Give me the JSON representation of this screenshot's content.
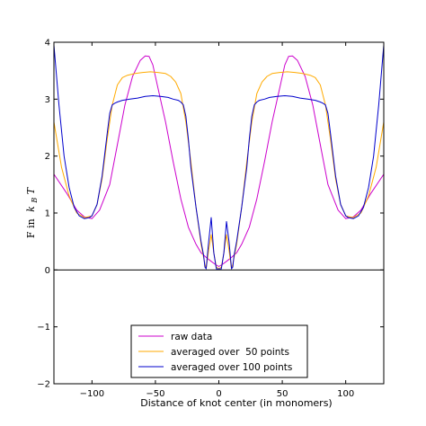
{
  "chart_data": {
    "type": "line",
    "title": "",
    "xlabel": "Distance of knot center (in monomers)",
    "ylabel_text": "F in",
    "ylabel_math": "k",
    "ylabel_sub": "B",
    "ylabel_tail": "T",
    "xlim": [
      -130,
      130
    ],
    "ylim": [
      -2,
      4
    ],
    "xticks": [
      -100,
      -50,
      0,
      50,
      100
    ],
    "xtick_labels": [
      "−100",
      "−50",
      "0",
      "50",
      "100"
    ],
    "yticks": [
      -2,
      -1,
      0,
      1,
      2,
      3,
      4
    ],
    "ytick_labels": [
      "−2",
      "−1",
      "0",
      "1",
      "2",
      "3",
      "4"
    ],
    "grid": false,
    "legend_position": "lower-center",
    "reference_line_y": 0,
    "series": [
      {
        "name": "raw data",
        "color": "#cc00cc",
        "x": [
          -130,
          -120,
          -112,
          -106,
          -100,
          -94,
          -86,
          -80,
          -74,
          -68,
          -62,
          -58,
          -55,
          -52,
          -48,
          -42,
          -36,
          -30,
          -24,
          -18,
          -14,
          -10,
          -6,
          -3,
          0,
          3,
          6,
          10,
          14,
          18,
          24,
          30,
          36,
          42,
          48,
          52,
          55,
          58,
          62,
          68,
          74,
          80,
          86,
          94,
          100,
          106,
          112,
          120,
          130
        ],
        "y": [
          1.68,
          1.35,
          1.05,
          0.93,
          0.9,
          1.05,
          1.5,
          2.2,
          2.9,
          3.4,
          3.68,
          3.76,
          3.75,
          3.6,
          3.2,
          2.6,
          1.9,
          1.25,
          0.75,
          0.45,
          0.3,
          0.22,
          0.15,
          0.1,
          0.06,
          0.1,
          0.15,
          0.22,
          0.3,
          0.45,
          0.75,
          1.25,
          1.9,
          2.6,
          3.2,
          3.6,
          3.75,
          3.76,
          3.68,
          3.4,
          2.9,
          2.2,
          1.5,
          1.05,
          0.9,
          0.93,
          1.05,
          1.35,
          1.68
        ]
      },
      {
        "name": "averaged over  50 points",
        "color": "#ffaa00",
        "x": [
          -130,
          -124,
          -118,
          -112,
          -106,
          -100,
          -96,
          -92,
          -88,
          -84,
          -80,
          -76,
          -72,
          -66,
          -60,
          -54,
          -48,
          -42,
          -38,
          -34,
          -30,
          -26,
          -22,
          -18,
          -14,
          -11,
          -10,
          -8,
          -6,
          -4,
          -2,
          0,
          2,
          4,
          6,
          8,
          10,
          11,
          14,
          18,
          22,
          26,
          30,
          34,
          38,
          42,
          48,
          54,
          60,
          66,
          72,
          76,
          80,
          84,
          88,
          92,
          96,
          100,
          106,
          112,
          118,
          124,
          130
        ],
        "y": [
          2.6,
          1.8,
          1.3,
          1.0,
          0.92,
          0.95,
          1.15,
          1.6,
          2.3,
          2.9,
          3.25,
          3.38,
          3.42,
          3.45,
          3.47,
          3.48,
          3.47,
          3.45,
          3.4,
          3.3,
          3.1,
          2.6,
          1.9,
          1.1,
          0.45,
          0.1,
          0.02,
          0.35,
          0.62,
          0.3,
          0.05,
          0.02,
          0.05,
          0.3,
          0.62,
          0.35,
          0.02,
          0.1,
          0.45,
          1.1,
          1.9,
          2.6,
          3.1,
          3.3,
          3.4,
          3.45,
          3.47,
          3.48,
          3.47,
          3.45,
          3.42,
          3.38,
          3.25,
          2.9,
          2.3,
          1.6,
          1.15,
          0.95,
          0.92,
          1.0,
          1.3,
          1.8,
          2.6
        ]
      },
      {
        "name": "averaged over 100 points",
        "color": "#0000cc",
        "x": [
          -130,
          -126,
          -122,
          -118,
          -114,
          -110,
          -106,
          -102,
          -100,
          -96,
          -92,
          -88,
          -86,
          -84,
          -82,
          -80,
          -76,
          -70,
          -64,
          -58,
          -52,
          -46,
          -40,
          -36,
          -32,
          -30,
          -28,
          -26,
          -24,
          -22,
          -18,
          -14,
          -12,
          -11,
          -10,
          -8,
          -6,
          -4,
          -2,
          0,
          2,
          4,
          6,
          8,
          10,
          11,
          12,
          14,
          18,
          22,
          24,
          26,
          28,
          30,
          32,
          36,
          40,
          46,
          52,
          58,
          64,
          70,
          76,
          80,
          82,
          84,
          86,
          88,
          92,
          96,
          100,
          102,
          106,
          110,
          114,
          118,
          122,
          126,
          130
        ],
        "y": [
          3.95,
          2.9,
          2.0,
          1.45,
          1.1,
          0.95,
          0.9,
          0.92,
          0.95,
          1.15,
          1.65,
          2.4,
          2.75,
          2.9,
          2.93,
          2.95,
          2.98,
          3.0,
          3.02,
          3.05,
          3.06,
          3.05,
          3.03,
          3.0,
          2.98,
          2.95,
          2.9,
          2.7,
          2.3,
          1.8,
          1.1,
          0.5,
          0.25,
          0.05,
          0.02,
          0.5,
          0.92,
          0.3,
          0.02,
          0.02,
          0.02,
          0.3,
          0.85,
          0.5,
          0.02,
          0.05,
          0.25,
          0.5,
          1.1,
          1.8,
          2.3,
          2.7,
          2.9,
          2.95,
          2.98,
          3.0,
          3.03,
          3.05,
          3.06,
          3.05,
          3.02,
          3.0,
          2.98,
          2.95,
          2.93,
          2.9,
          2.75,
          2.4,
          1.65,
          1.15,
          0.95,
          0.92,
          0.9,
          0.95,
          1.1,
          1.45,
          2.0,
          2.9,
          3.95
        ]
      }
    ]
  }
}
